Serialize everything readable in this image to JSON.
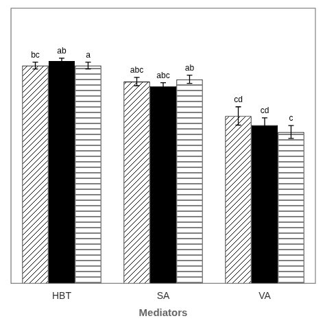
{
  "chart_data": {
    "type": "bar",
    "xlabel": "Mediators",
    "categories": [
      "HBT",
      "SA",
      "VA"
    ],
    "series": [
      {
        "color": "white",
        "values": [
          95,
          88,
          73
        ],
        "errors": [
          1.5,
          1.8,
          4.0
        ],
        "annotations": [
          "bc",
          "abc",
          "cd"
        ]
      },
      {
        "color": "black",
        "values": [
          97,
          86,
          69
        ],
        "errors": [
          1.2,
          1.5,
          3.2
        ],
        "annotations": [
          "ab",
          "abc",
          "cd"
        ]
      },
      {
        "color": "white",
        "values": [
          95,
          89,
          66
        ],
        "errors": [
          1.5,
          1.8,
          2.8
        ],
        "annotations": [
          "a",
          "ab",
          "c"
        ]
      }
    ],
    "ylim": [
      0,
      120
    ],
    "yticks": [],
    "grid": false,
    "tick_labels": "x"
  }
}
